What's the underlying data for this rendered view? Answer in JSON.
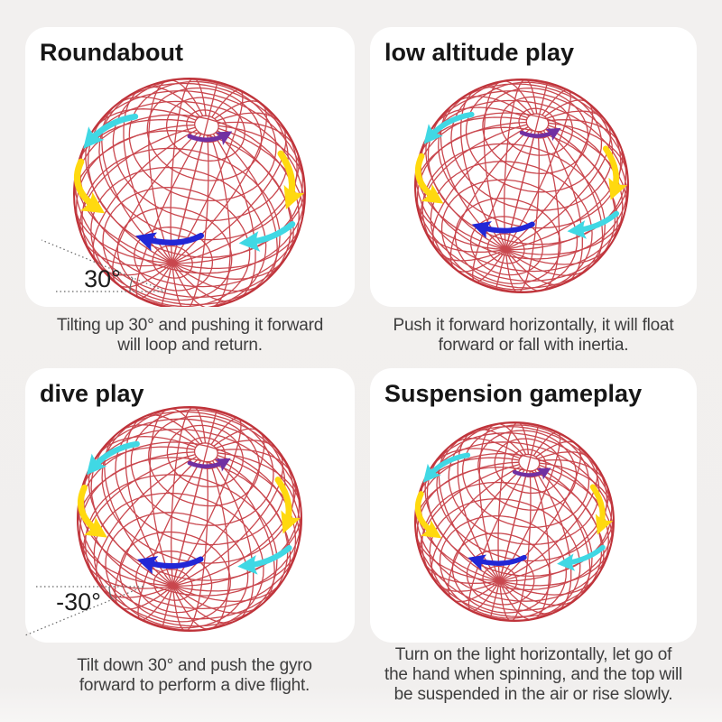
{
  "page": {
    "background": "#f1efee",
    "card_background": "#ffffff"
  },
  "colors": {
    "wireframe": "#c5383f",
    "rim": "#bf333a",
    "arrow_yellow": "#ffd90f",
    "arrow_cyan": "#40d8e4",
    "arrow_blue": "#2227d6",
    "arrow_purple": "#7130a2",
    "angle_line": "#666666",
    "title_text": "#161616",
    "caption_text": "#3e3e3e"
  },
  "panels": [
    {
      "title": "Roundabout",
      "angle_label": "30°",
      "caption_lines": [
        "Tilting up 30° and pushing it forward",
        "will loop and return."
      ]
    },
    {
      "title": "low altitude play",
      "caption_lines": [
        "Push it forward horizontally, it will float",
        "forward or fall with inertia."
      ]
    },
    {
      "title": "dive play",
      "angle_label": "-30°",
      "caption_lines": [
        "Tilt down 30° and push the gyro",
        "forward to perform a dive flight."
      ]
    },
    {
      "title": "Suspension gameplay",
      "caption_lines": [
        "Turn on the light horizontally, let go of",
        "the hand when spinning, and the top will",
        "be suspended in the air or rise slowly."
      ]
    }
  ]
}
